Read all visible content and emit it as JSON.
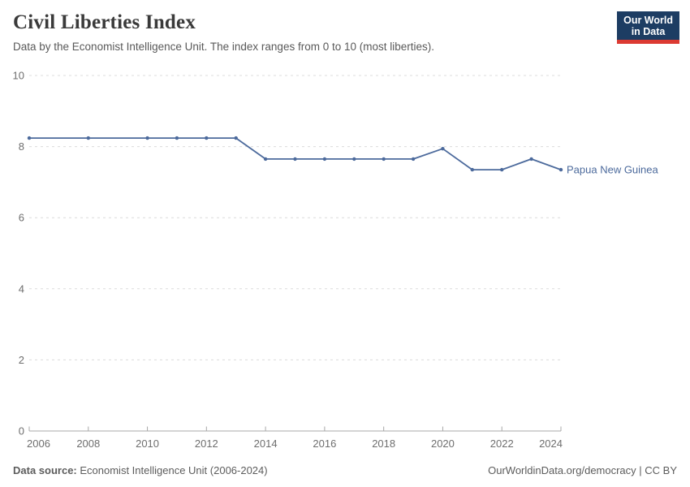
{
  "header": {
    "title": "Civil Liberties Index",
    "subtitle": "Data by the Economist Intelligence Unit. The index ranges from 0 to 10 (most liberties).",
    "logo": {
      "line1": "Our World",
      "line2": "in Data",
      "bg_color": "#1d3d63",
      "accent_color": "#dc3a32"
    }
  },
  "chart_data": {
    "type": "line",
    "title": "Civil Liberties Index",
    "xlabel": "",
    "ylabel": "",
    "xlim": [
      2006,
      2024
    ],
    "ylim": [
      0,
      10
    ],
    "x_ticks": [
      2006,
      2008,
      2010,
      2012,
      2014,
      2016,
      2018,
      2020,
      2022,
      2024
    ],
    "y_ticks": [
      0,
      2,
      4,
      6,
      8,
      10
    ],
    "grid": "horizontal-dashed",
    "legend_position": "end-of-line-label",
    "series": [
      {
        "name": "Papua New Guinea",
        "color": "#4c6a9c",
        "points": [
          [
            2006,
            8.24
          ],
          [
            2008,
            8.24
          ],
          [
            2010,
            8.24
          ],
          [
            2011,
            8.24
          ],
          [
            2012,
            8.24
          ],
          [
            2013,
            8.24
          ],
          [
            2014,
            7.65
          ],
          [
            2015,
            7.65
          ],
          [
            2016,
            7.65
          ],
          [
            2017,
            7.65
          ],
          [
            2018,
            7.65
          ],
          [
            2019,
            7.65
          ],
          [
            2020,
            7.94
          ],
          [
            2021,
            7.35
          ],
          [
            2022,
            7.35
          ],
          [
            2023,
            7.65
          ],
          [
            2024,
            7.35
          ]
        ]
      }
    ]
  },
  "footer": {
    "source_label": "Data source:",
    "source_value": " Economist Intelligence Unit (2006-2024)",
    "link": "OurWorldinData.org/democracy | CC BY"
  }
}
